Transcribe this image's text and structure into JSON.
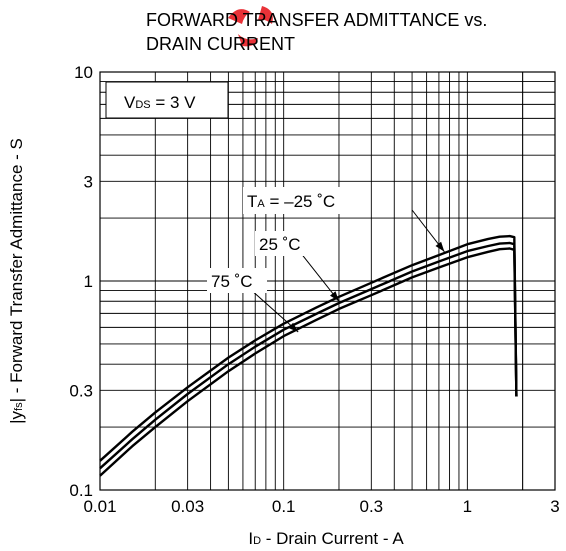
{
  "chart_data": {
    "type": "line",
    "title_lines": [
      "FORWARD TRANSFER ADMITTANCE vs.",
      "DRAIN CURRENT"
    ],
    "xlabel": {
      "main": "I",
      "sub": "D",
      "rest": " - Drain Current - A"
    },
    "ylabel": {
      "pre": "|y",
      "sub": "fs",
      "rest": "| - Forward Transfer Admittance - S"
    },
    "x_scale": "log",
    "y_scale": "log",
    "xlim": [
      0.01,
      3
    ],
    "ylim": [
      0.1,
      10
    ],
    "x_ticks": [
      {
        "value": 0.01,
        "label": "0.01"
      },
      {
        "value": 0.03,
        "label": "0.03"
      },
      {
        "value": 0.1,
        "label": "0.1"
      },
      {
        "value": 0.3,
        "label": "0.3"
      },
      {
        "value": 1,
        "label": "1"
      },
      {
        "value": 3,
        "label": "3"
      }
    ],
    "y_ticks": [
      {
        "value": 0.1,
        "label": "0.1"
      },
      {
        "value": 0.3,
        "label": "0.3"
      },
      {
        "value": 1,
        "label": "1"
      },
      {
        "value": 3,
        "label": "3"
      },
      {
        "value": 10,
        "label": "10"
      }
    ],
    "grid": true,
    "condition": {
      "main": "V",
      "sub": "DS",
      "rest": " = 3 V"
    },
    "series": [
      {
        "name": "TA = -25 °C",
        "x": [
          0.01,
          0.015,
          0.02,
          0.03,
          0.05,
          0.07,
          0.1,
          0.15,
          0.2,
          0.3,
          0.5,
          0.7,
          1.0,
          1.3,
          1.5,
          1.7,
          1.8,
          1.85
        ],
        "y": [
          0.138,
          0.19,
          0.235,
          0.31,
          0.43,
          0.52,
          0.625,
          0.745,
          0.84,
          0.98,
          1.19,
          1.33,
          1.5,
          1.59,
          1.63,
          1.64,
          1.62,
          0.28
        ]
      },
      {
        "name": "25 °C",
        "x": [
          0.01,
          0.015,
          0.02,
          0.03,
          0.05,
          0.07,
          0.1,
          0.15,
          0.2,
          0.3,
          0.5,
          0.7,
          1.0,
          1.3,
          1.5,
          1.7,
          1.8,
          1.85
        ],
        "y": [
          0.127,
          0.175,
          0.217,
          0.288,
          0.4,
          0.485,
          0.585,
          0.695,
          0.785,
          0.915,
          1.11,
          1.24,
          1.39,
          1.47,
          1.51,
          1.52,
          1.5,
          0.28
        ]
      },
      {
        "name": "75 °C",
        "x": [
          0.01,
          0.015,
          0.02,
          0.03,
          0.05,
          0.07,
          0.1,
          0.15,
          0.2,
          0.3,
          0.5,
          0.7,
          1.0,
          1.3,
          1.5,
          1.7,
          1.8,
          1.85
        ],
        "y": [
          0.117,
          0.162,
          0.2,
          0.266,
          0.37,
          0.45,
          0.545,
          0.65,
          0.735,
          0.855,
          1.04,
          1.16,
          1.3,
          1.38,
          1.42,
          1.43,
          1.41,
          0.28
        ]
      }
    ],
    "annotations": [
      {
        "id": "ta-25",
        "series": 0,
        "main": "T",
        "sub": "A",
        "rest": " = –25 ˚C",
        "x": 0.9,
        "y": 3.0,
        "arrow_to": [
          0.75,
          1.38
        ]
      },
      {
        "id": "t25",
        "series": 1,
        "main": "",
        "sub": "",
        "rest": "25 ˚C",
        "x": 0.105,
        "y": 1.85,
        "arrow_to": [
          0.2,
          0.8
        ]
      },
      {
        "id": "t75",
        "series": 2,
        "main": "",
        "sub": "",
        "rest": "75 ˚C",
        "x": 0.062,
        "y": 1.0,
        "arrow_to": [
          0.12,
          0.57
        ]
      }
    ],
    "colors": {
      "line": "#000000",
      "grid": "#000000",
      "watermark": "#e8282e"
    }
  }
}
